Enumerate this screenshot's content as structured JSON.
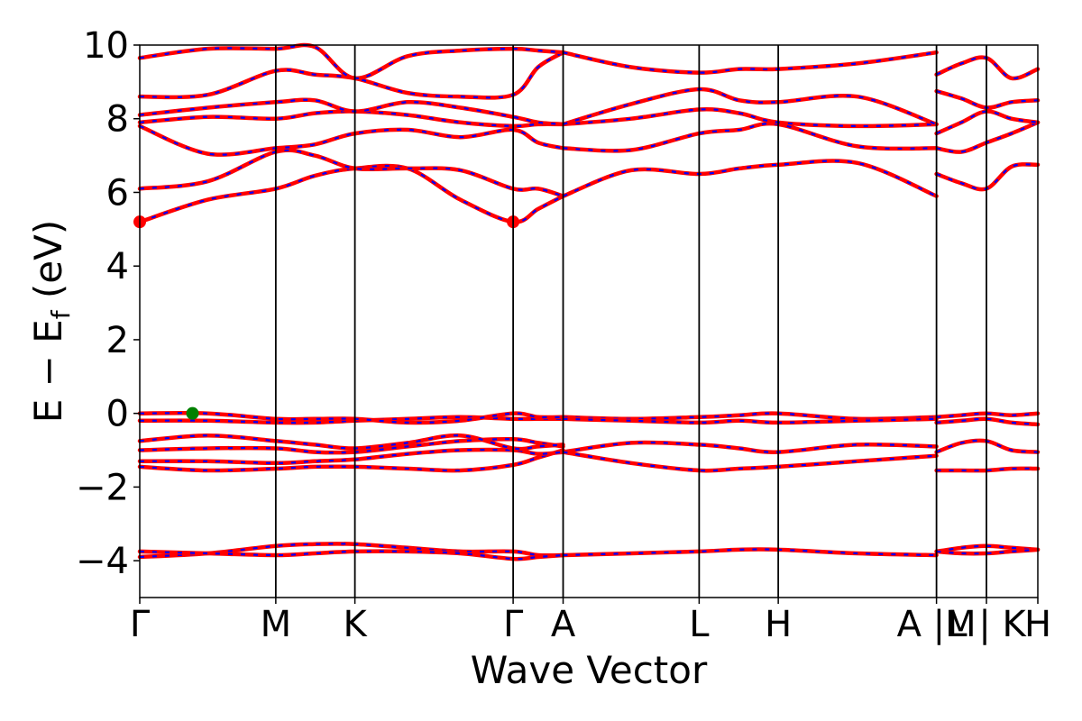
{
  "chart_data": {
    "type": "line",
    "title": "",
    "xlabel": "Wave Vector",
    "ylabel": {
      "prefix": "E − E",
      "subscript": "f",
      "suffix": " (eV)"
    },
    "ylim": [
      -5,
      10
    ],
    "yticks": [
      -4,
      -2,
      0,
      2,
      4,
      6,
      8,
      10
    ],
    "ytick_labels": [
      "−4",
      "−2",
      "0",
      "2",
      "4",
      "6",
      "8",
      "10"
    ],
    "xlim": [
      0,
      6.47
    ],
    "kpoints": [
      {
        "label": "Γ",
        "x": 0.0
      },
      {
        "label": "M",
        "x": 0.98
      },
      {
        "label": "K",
        "x": 1.55
      },
      {
        "label": "Γ",
        "x": 2.69
      },
      {
        "label": "A",
        "x": 3.05
      },
      {
        "label": "L",
        "x": 4.03
      },
      {
        "label": "H",
        "x": 4.6
      },
      {
        "label": "A |M",
        "x": 5.74
      },
      {
        "label": "L | K",
        "x": 6.1
      },
      {
        "label": "H",
        "x": 6.47
      }
    ],
    "vlines_x": [
      0.98,
      1.55,
      2.69,
      3.05,
      4.03,
      4.6,
      5.74,
      6.1
    ],
    "grid": false,
    "legend": "none",
    "colors": {
      "spin_up": "#ff0000",
      "spin_down": "#0000ff",
      "cbm": "#ff0000",
      "vbm": "#008000"
    },
    "markers": [
      {
        "name": "CBM",
        "x": 0.0,
        "y": 5.2
      },
      {
        "name": "CBM",
        "x": 2.69,
        "y": 5.2
      },
      {
        "name": "VBM",
        "x": 0.38,
        "y": 0.0
      }
    ],
    "segments": [
      {
        "x": [
          0.0,
          0.49,
          0.98,
          1.26,
          1.55,
          1.93,
          2.31,
          2.69,
          2.87,
          3.05
        ],
        "bands": [
          [
            -3.9,
            -3.8,
            -3.6,
            -3.55,
            -3.55,
            -3.65,
            -3.75,
            -3.75,
            -3.85,
            -3.85
          ],
          [
            -3.75,
            -3.8,
            -3.85,
            -3.8,
            -3.75,
            -3.75,
            -3.8,
            -3.95,
            -3.9,
            -3.85
          ],
          [
            -1.45,
            -1.55,
            -1.5,
            -1.45,
            -1.45,
            -1.5,
            -1.55,
            -1.4,
            -1.2,
            -1.0
          ],
          [
            -1.3,
            -1.3,
            -1.35,
            -1.3,
            -1.25,
            -1.1,
            -1.0,
            -1.0,
            -1.1,
            -1.05
          ],
          [
            -1.0,
            -0.95,
            -0.95,
            -1.05,
            -1.05,
            -0.9,
            -0.75,
            -0.7,
            -0.8,
            -0.9
          ],
          [
            -0.75,
            -0.6,
            -0.75,
            -0.85,
            -0.95,
            -0.8,
            -0.6,
            -0.95,
            -0.9,
            -0.85
          ],
          [
            -0.2,
            -0.2,
            -0.25,
            -0.25,
            -0.2,
            -0.15,
            -0.1,
            -0.15,
            -0.15,
            -0.15
          ],
          [
            0.0,
            0.0,
            -0.15,
            -0.15,
            -0.15,
            -0.25,
            -0.2,
            0.0,
            -0.1,
            -0.1
          ],
          [
            5.2,
            5.8,
            6.1,
            6.45,
            6.65,
            6.65,
            5.8,
            5.2,
            5.55,
            5.9
          ],
          [
            6.1,
            6.3,
            7.1,
            7.0,
            6.65,
            6.65,
            6.6,
            6.1,
            6.1,
            5.9
          ],
          [
            7.8,
            7.05,
            7.2,
            7.3,
            7.6,
            7.7,
            7.5,
            7.7,
            7.35,
            7.2
          ],
          [
            7.9,
            8.05,
            8.0,
            8.15,
            8.2,
            8.1,
            7.9,
            7.8,
            7.85,
            7.85
          ],
          [
            8.1,
            8.3,
            8.45,
            8.5,
            8.2,
            8.45,
            8.3,
            8.05,
            7.9,
            7.85
          ],
          [
            8.6,
            8.65,
            9.3,
            9.2,
            9.1,
            8.7,
            8.6,
            8.65,
            9.4,
            9.8
          ],
          [
            9.65,
            9.9,
            9.9,
            9.95,
            9.1,
            9.7,
            9.85,
            9.9,
            9.85,
            9.8
          ]
        ]
      },
      {
        "x": [
          3.05,
          3.54,
          4.03,
          4.32,
          4.6,
          5.17,
          5.74
        ],
        "bands": [
          [
            -3.85,
            -3.8,
            -3.75,
            -3.7,
            -3.7,
            -3.8,
            -3.85
          ],
          [
            -1.05,
            -0.8,
            -0.85,
            -0.95,
            -1.05,
            -0.85,
            -0.9
          ],
          [
            -1.05,
            -1.35,
            -1.55,
            -1.5,
            -1.45,
            -1.3,
            -1.15
          ],
          [
            -0.1,
            -0.15,
            -0.1,
            -0.05,
            0.0,
            -0.15,
            -0.1
          ],
          [
            -0.15,
            -0.2,
            -0.25,
            -0.2,
            -0.25,
            -0.2,
            -0.15
          ],
          [
            5.9,
            6.6,
            6.5,
            6.65,
            6.75,
            6.8,
            5.9
          ],
          [
            7.2,
            7.15,
            7.6,
            7.7,
            7.85,
            7.25,
            7.2
          ],
          [
            7.85,
            8.0,
            8.25,
            8.15,
            7.9,
            7.8,
            7.85
          ],
          [
            7.85,
            8.4,
            8.8,
            8.5,
            8.45,
            8.6,
            7.85
          ],
          [
            9.8,
            9.4,
            9.25,
            9.35,
            9.35,
            9.5,
            9.8
          ]
        ]
      },
      {
        "x": [
          5.74,
          5.92,
          6.1,
          6.28,
          6.47
        ],
        "bands": [
          [
            -3.75,
            -3.65,
            -3.6,
            -3.65,
            -3.7
          ],
          [
            -3.75,
            -3.8,
            -3.8,
            -3.75,
            -3.7
          ],
          [
            -1.55,
            -1.55,
            -1.55,
            -1.5,
            -1.5
          ],
          [
            -1.05,
            -0.8,
            -0.75,
            -1.0,
            -1.05
          ],
          [
            -0.25,
            -0.2,
            -0.15,
            -0.25,
            -0.3
          ],
          [
            -0.1,
            -0.05,
            0.0,
            -0.05,
            0.0
          ],
          [
            6.5,
            6.25,
            6.1,
            6.7,
            6.75
          ],
          [
            7.2,
            7.1,
            7.35,
            7.6,
            7.9
          ],
          [
            7.6,
            7.9,
            8.2,
            8.0,
            7.9
          ],
          [
            8.75,
            8.55,
            8.3,
            8.45,
            8.5
          ],
          [
            9.2,
            9.5,
            9.65,
            9.1,
            9.35
          ]
        ]
      }
    ]
  }
}
